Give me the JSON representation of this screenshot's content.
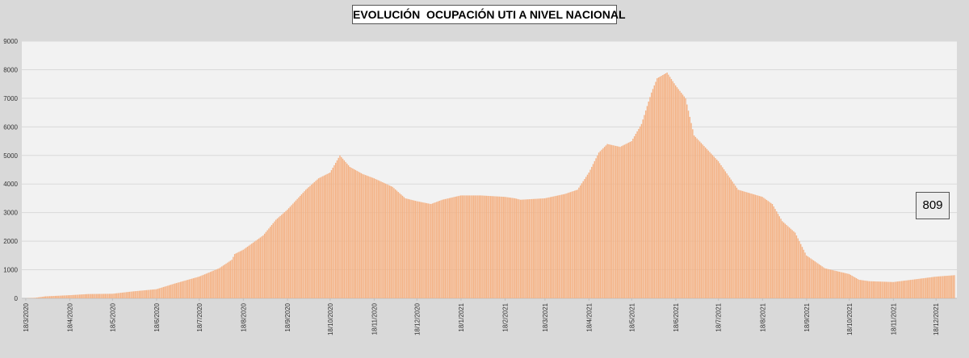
{
  "chart_data": {
    "type": "bar",
    "title": "EVOLUCIÓN  OCUPACIÓN UTI A NIVEL NACIONAL",
    "current_value_label": "809",
    "ylim": [
      0,
      9000
    ],
    "y_ticks": [
      "0",
      "1000",
      "2000",
      "3000",
      "4000",
      "5000",
      "6000",
      "7000",
      "8000",
      "9000"
    ],
    "x_start": "2020-03-18",
    "x_end": "2021-12-31",
    "x_tick_labels": [
      "18/3/2020",
      "18/4/2020",
      "18/5/2020",
      "18/6/2020",
      "18/7/2020",
      "18/8/2020",
      "18/9/2020",
      "18/10/2020",
      "18/11/2020",
      "18/12/2020",
      "18/1/2021",
      "18/2/2021",
      "18/3/2021",
      "18/4/2021",
      "18/5/2021",
      "18/6/2021",
      "18/7/2021",
      "18/8/2021",
      "18/9/2021",
      "18/10/2021",
      "18/11/2021",
      "18/12/2021"
    ],
    "series": [
      {
        "color": "#f4b183",
        "points": [
          [
            "2020-03-18",
            0
          ],
          [
            "2020-03-25",
            20
          ],
          [
            "2020-04-01",
            70
          ],
          [
            "2020-04-18",
            110
          ],
          [
            "2020-05-01",
            150
          ],
          [
            "2020-05-18",
            160
          ],
          [
            "2020-06-01",
            240
          ],
          [
            "2020-06-18",
            320
          ],
          [
            "2020-07-01",
            520
          ],
          [
            "2020-07-18",
            760
          ],
          [
            "2020-08-01",
            1050
          ],
          [
            "2020-08-10",
            1350
          ],
          [
            "2020-08-12",
            1550
          ],
          [
            "2020-08-18",
            1700
          ],
          [
            "2020-09-01",
            2200
          ],
          [
            "2020-09-10",
            2750
          ],
          [
            "2020-09-18",
            3100
          ],
          [
            "2020-10-01",
            3800
          ],
          [
            "2020-10-10",
            4200
          ],
          [
            "2020-10-18",
            4400
          ],
          [
            "2020-10-25",
            5000
          ],
          [
            "2020-11-01",
            4600
          ],
          [
            "2020-11-10",
            4350
          ],
          [
            "2020-11-18",
            4200
          ],
          [
            "2020-12-01",
            3900
          ],
          [
            "2020-12-10",
            3500
          ],
          [
            "2020-12-18",
            3400
          ],
          [
            "2020-12-28",
            3300
          ],
          [
            "2021-01-05",
            3450
          ],
          [
            "2021-01-18",
            3600
          ],
          [
            "2021-02-01",
            3600
          ],
          [
            "2021-02-18",
            3550
          ],
          [
            "2021-02-25",
            3500
          ],
          [
            "2021-03-01",
            3450
          ],
          [
            "2021-03-18",
            3500
          ],
          [
            "2021-04-01",
            3650
          ],
          [
            "2021-04-10",
            3800
          ],
          [
            "2021-04-18",
            4400
          ],
          [
            "2021-04-25",
            5100
          ],
          [
            "2021-05-01",
            5400
          ],
          [
            "2021-05-10",
            5300
          ],
          [
            "2021-05-18",
            5500
          ],
          [
            "2021-05-25",
            6100
          ],
          [
            "2021-06-01",
            7200
          ],
          [
            "2021-06-05",
            7700
          ],
          [
            "2021-06-12",
            7900
          ],
          [
            "2021-06-18",
            7450
          ],
          [
            "2021-06-25",
            7000
          ],
          [
            "2021-07-01",
            5700
          ],
          [
            "2021-07-18",
            4800
          ],
          [
            "2021-08-01",
            3800
          ],
          [
            "2021-08-18",
            3550
          ],
          [
            "2021-08-25",
            3300
          ],
          [
            "2021-09-01",
            2700
          ],
          [
            "2021-09-10",
            2300
          ],
          [
            "2021-09-18",
            1500
          ],
          [
            "2021-10-01",
            1050
          ],
          [
            "2021-10-18",
            850
          ],
          [
            "2021-10-25",
            650
          ],
          [
            "2021-11-01",
            600
          ],
          [
            "2021-11-18",
            570
          ],
          [
            "2021-12-01",
            650
          ],
          [
            "2021-12-18",
            760
          ],
          [
            "2021-12-31",
            809
          ]
        ]
      }
    ]
  }
}
